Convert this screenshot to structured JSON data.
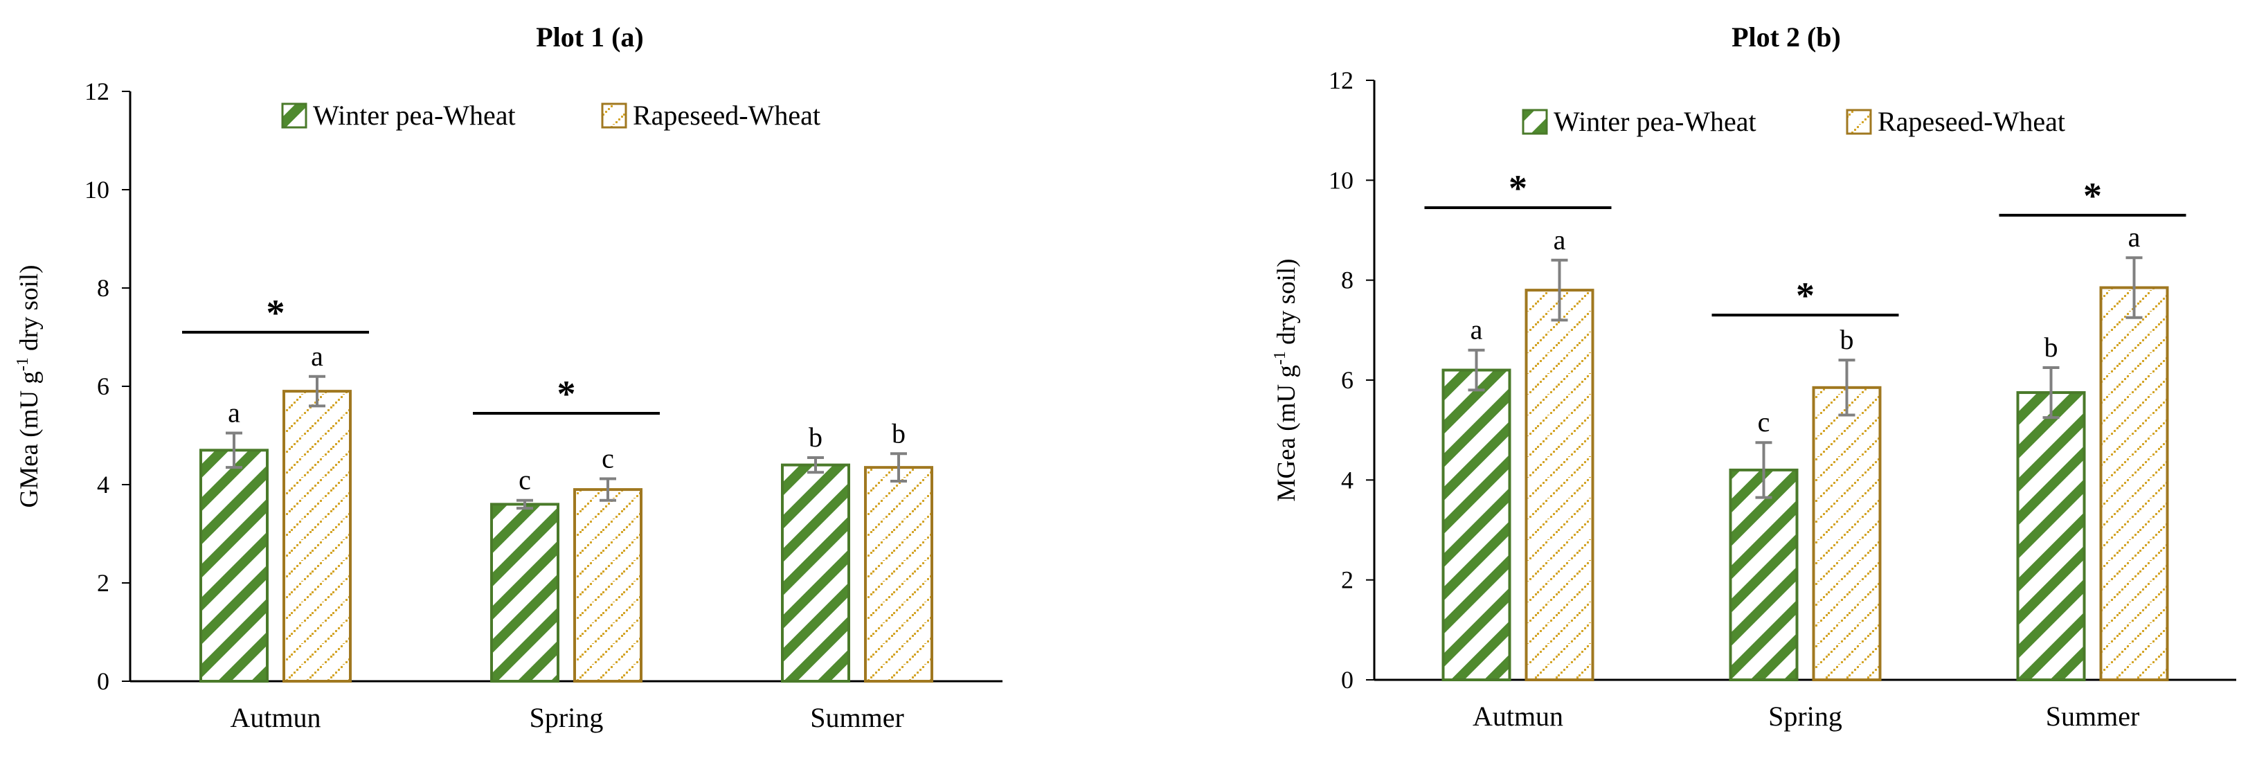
{
  "colors": {
    "pea_stroke": "#4a7a2a",
    "pea_stripe": "#4f8a2e",
    "rape_stroke": "#a07820",
    "rape_dot": "#d4a52a",
    "errbar": "#808080",
    "axis": "#000000",
    "background": "#ffffff"
  },
  "chart_data": [
    {
      "type": "bar",
      "title": "Plot 1 (a)",
      "ylabel_main": "GMea (mU g",
      "ylabel_sup": "-1",
      "ylabel_tail": " dry soil)",
      "xlabel": "",
      "ylim": [
        0,
        12
      ],
      "yticks": [
        "0",
        "2",
        "4",
        "6",
        "8",
        "10",
        "12"
      ],
      "legend_position": "top-center",
      "categories": [
        "Autmun",
        "Spring",
        "Summer"
      ],
      "series": [
        {
          "name": "Winter pea-Wheat",
          "pattern": "stripes",
          "values": [
            4.7,
            3.6,
            4.4
          ],
          "errors": [
            0.35,
            0.08,
            0.15
          ],
          "letters": [
            "a",
            "c",
            "b"
          ]
        },
        {
          "name": "Rapeseed-Wheat",
          "pattern": "dots",
          "values": [
            5.9,
            3.9,
            4.35
          ],
          "errors": [
            0.3,
            0.22,
            0.28
          ],
          "letters": [
            "a",
            "c",
            "b"
          ]
        }
      ],
      "significance": [
        {
          "category": 0,
          "label": "*",
          "line_y": 7.1
        },
        {
          "category": 1,
          "label": "*",
          "line_y": 5.45
        }
      ]
    },
    {
      "type": "bar",
      "title": "Plot 2 (b)",
      "ylabel_main": "MGea (mU g",
      "ylabel_sup": "-1",
      "ylabel_tail": " dry soil)",
      "xlabel": "",
      "ylim": [
        0,
        12
      ],
      "yticks": [
        "0",
        "2",
        "4",
        "6",
        "8",
        "10",
        "12"
      ],
      "legend_position": "top-center",
      "categories": [
        "Autmun",
        "Spring",
        "Summer"
      ],
      "series": [
        {
          "name": "Winter pea-Wheat",
          "pattern": "stripes",
          "values": [
            6.2,
            4.2,
            5.75
          ],
          "errors": [
            0.4,
            0.55,
            0.5
          ],
          "letters": [
            "a",
            "c",
            "b"
          ]
        },
        {
          "name": "Rapeseed-Wheat",
          "pattern": "dots",
          "values": [
            7.8,
            5.85,
            7.85
          ],
          "errors": [
            0.6,
            0.55,
            0.6
          ],
          "letters": [
            "a",
            "b",
            "a"
          ]
        }
      ],
      "significance": [
        {
          "category": 0,
          "label": "*",
          "line_y": 9.45
        },
        {
          "category": 1,
          "label": "*",
          "line_y": 7.3
        },
        {
          "category": 2,
          "label": "*",
          "line_y": 9.3
        }
      ]
    }
  ]
}
